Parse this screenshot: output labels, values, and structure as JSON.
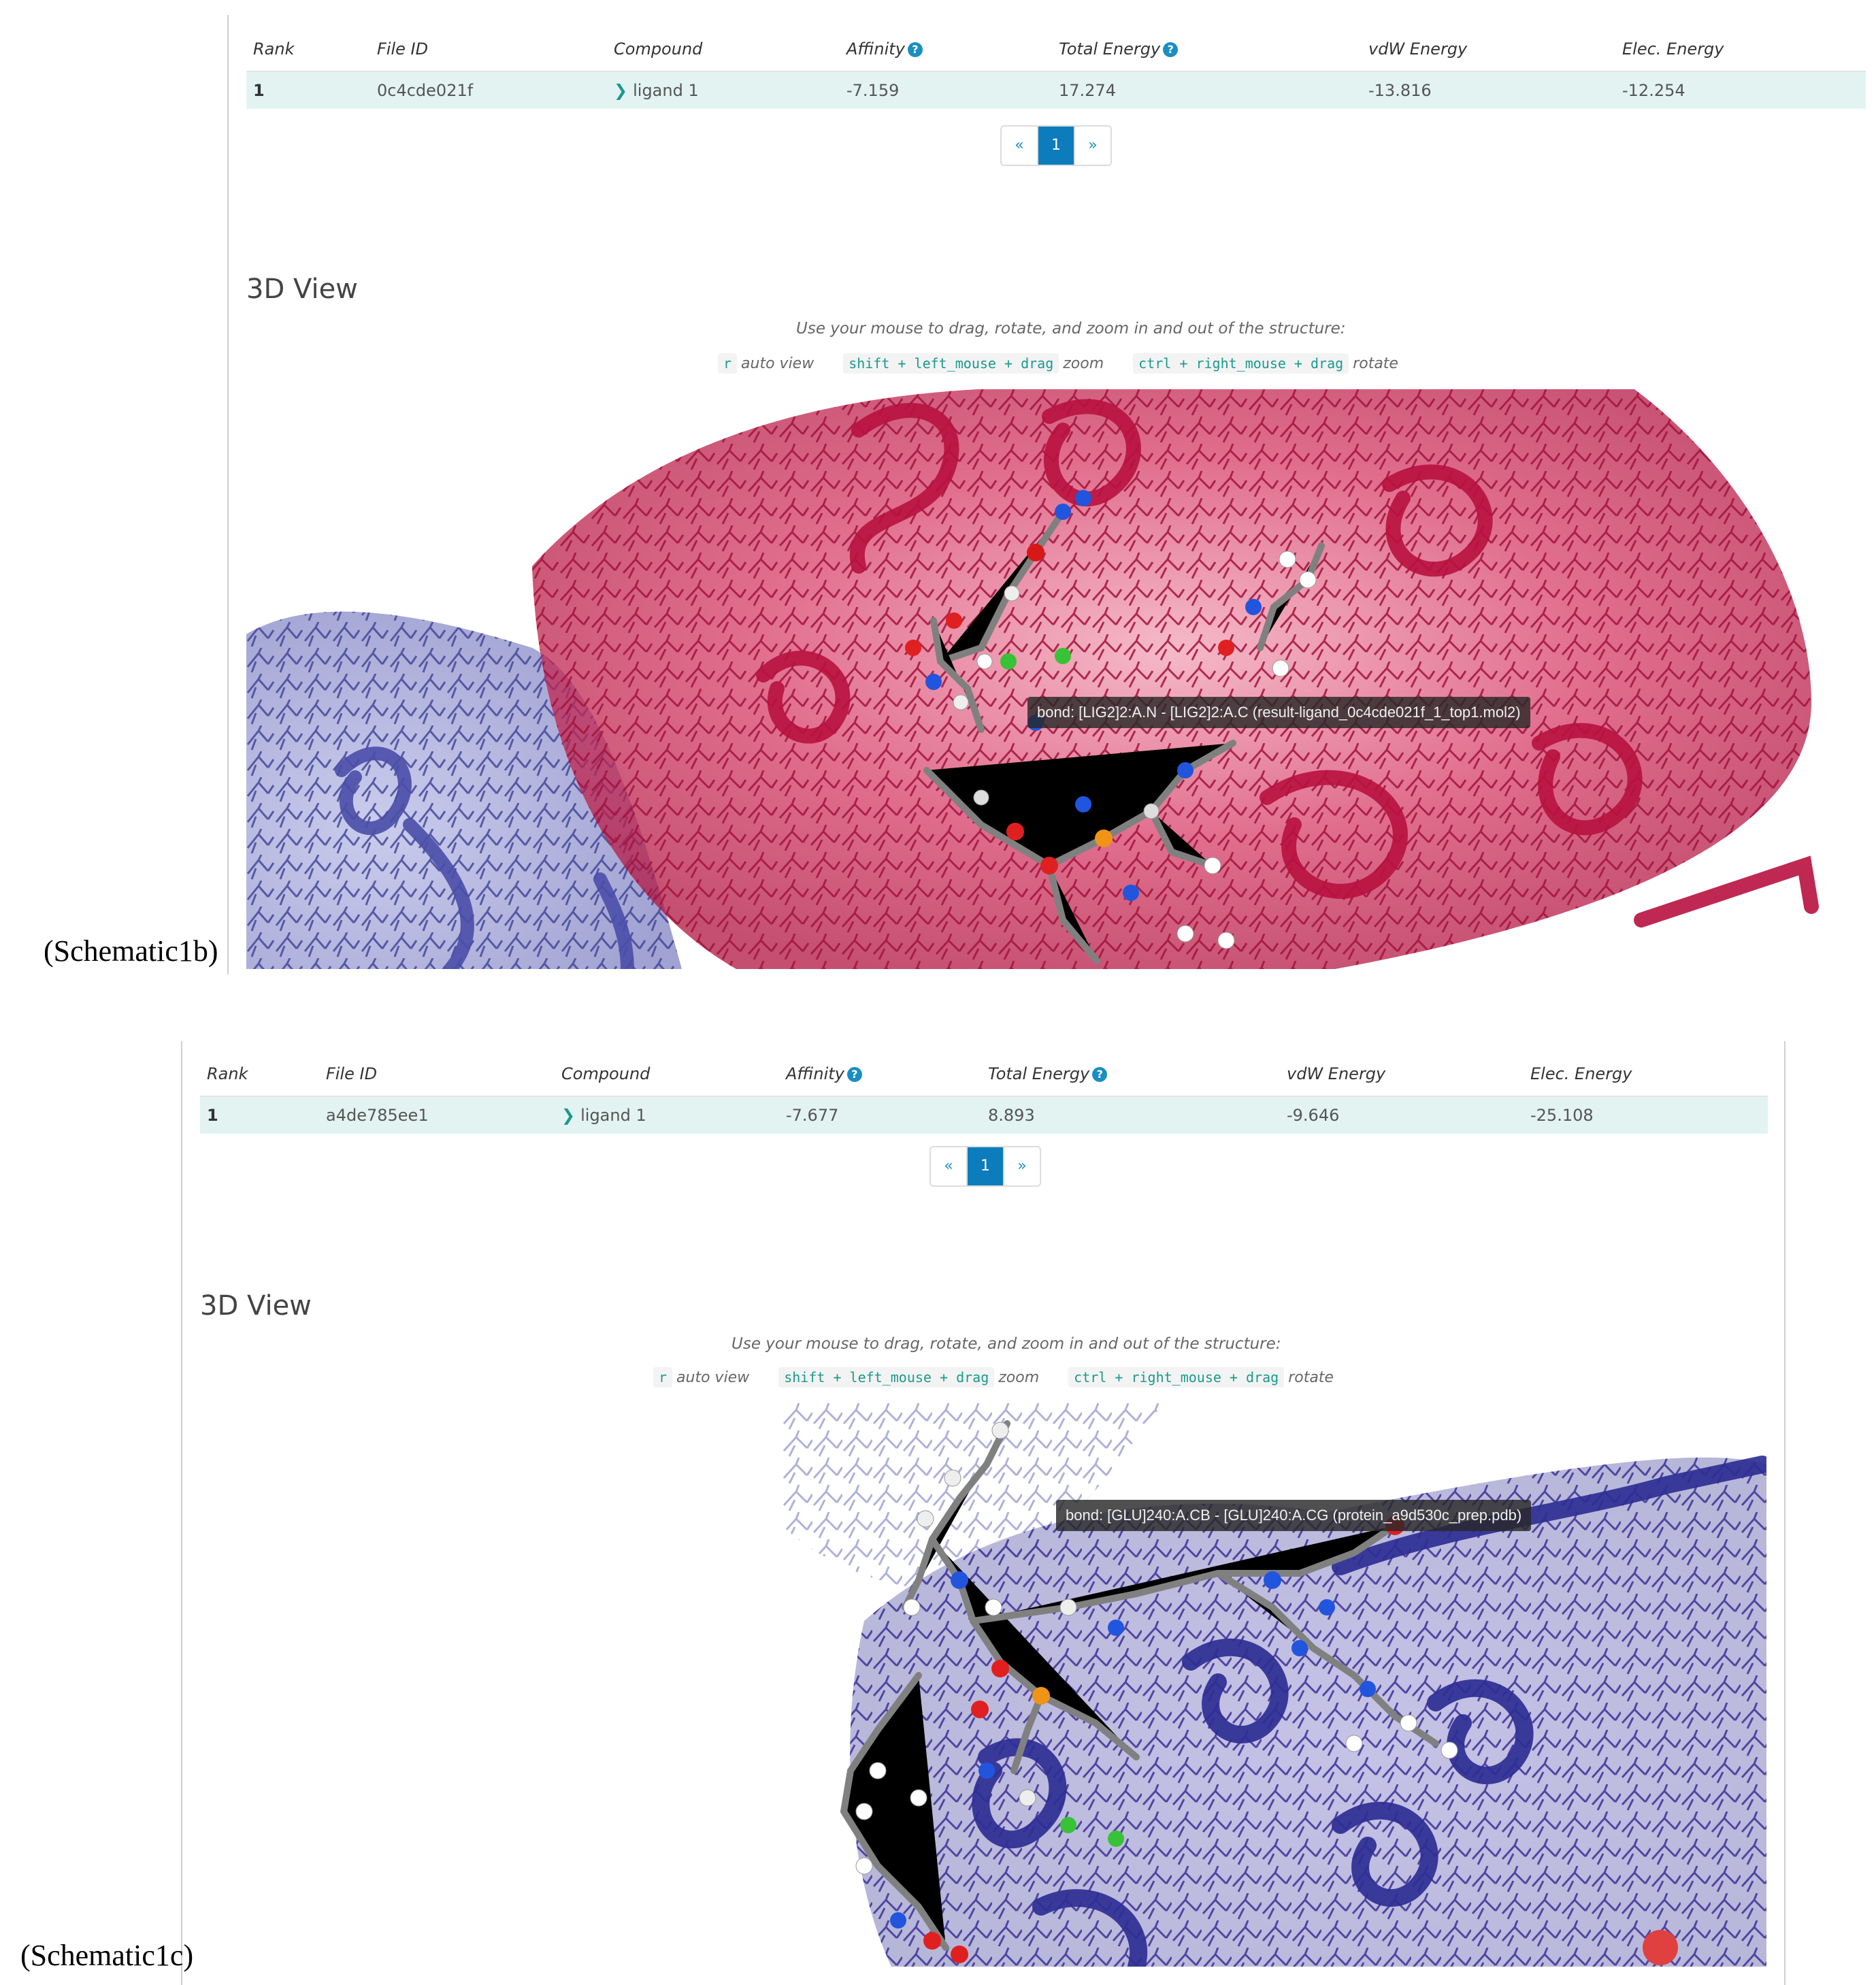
{
  "schematic_b": {
    "caption": "(Schematic1b)",
    "columns": [
      "Rank",
      "File ID",
      "Compound",
      "Affinity",
      "Total Energy",
      "vdW Energy",
      "Elec. Energy"
    ],
    "row": {
      "rank": "1",
      "file_id": "0c4cde021f",
      "compound": "ligand 1",
      "affinity": "-7.159",
      "total_energy": "17.274",
      "vdw_energy": "-13.816",
      "elec_energy": "-12.254"
    },
    "pager": {
      "prev": "«",
      "page": "1",
      "next": "»"
    },
    "section_title": "3D View",
    "instructions": "Use your mouse to drag, rotate, and zoom in and out of the structure:",
    "key_r": "r",
    "key_r_label": "auto view",
    "key_zoom": "shift + left_mouse + drag",
    "key_zoom_label": "zoom",
    "key_rotate": "ctrl + right_mouse + drag",
    "key_rotate_label": "rotate",
    "tooltip": "bond: [LIG2]2:A.N - [LIG2]2:A.C (result-ligand_0c4cde021f_1_top1.mol2)",
    "protein_colors": {
      "main": "#c41e4a",
      "secondary": "#5a5fb4"
    }
  },
  "schematic_c": {
    "caption": "(Schematic1c)",
    "columns": [
      "Rank",
      "File ID",
      "Compound",
      "Affinity",
      "Total Energy",
      "vdW Energy",
      "Elec. Energy"
    ],
    "row": {
      "rank": "1",
      "file_id": "a4de785ee1",
      "compound": "ligand 1",
      "affinity": "-7.677",
      "total_energy": "8.893",
      "vdw_energy": "-9.646",
      "elec_energy": "-25.108"
    },
    "pager": {
      "prev": "«",
      "page": "1",
      "next": "»"
    },
    "section_title": "3D View",
    "instructions": "Use your mouse to drag, rotate, and zoom in and out of the structure:",
    "key_r": "r",
    "key_r_label": "auto view",
    "key_zoom": "shift + left_mouse + drag",
    "key_zoom_label": "zoom",
    "key_rotate": "ctrl + right_mouse + drag",
    "key_rotate_label": "rotate",
    "tooltip": "bond: [GLU]240:A.CB - [GLU]240:A.CG (protein_a9d530c_prep.pdb)",
    "protein_colors": {
      "main": "#3b3b9e",
      "secondary": "#6a5cb8"
    }
  }
}
